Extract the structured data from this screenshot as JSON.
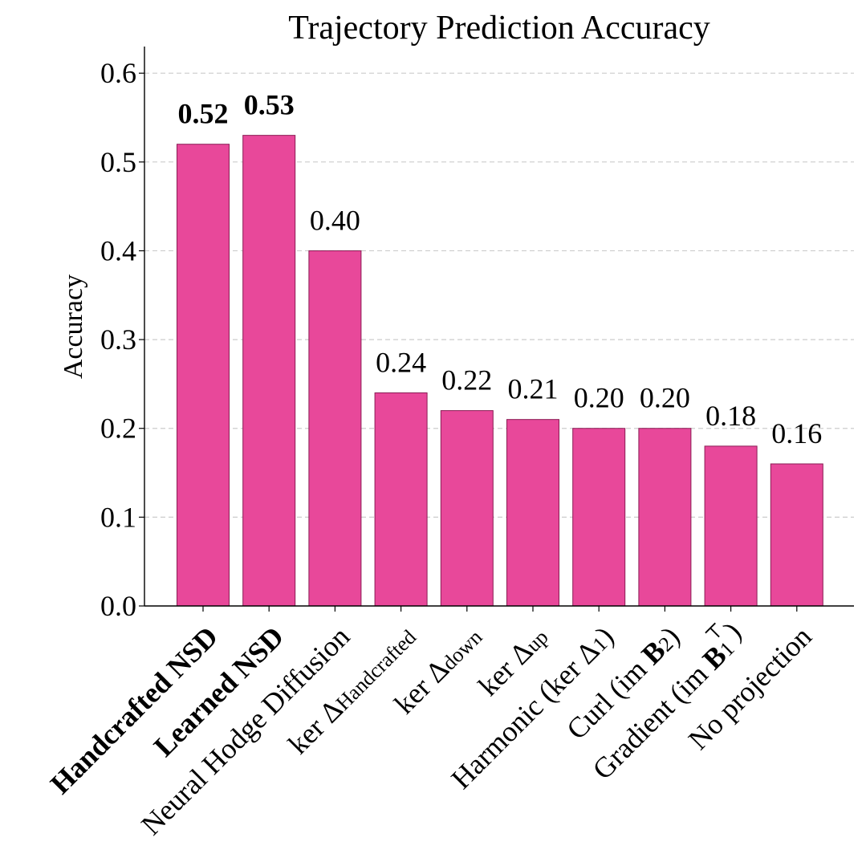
{
  "chart_data": {
    "type": "bar",
    "title": "Trajectory Prediction Accuracy",
    "xlabel": "",
    "ylabel": "Accuracy",
    "ylim": [
      0,
      0.63
    ],
    "yticks": [
      "0.0",
      "0.1",
      "0.2",
      "0.3",
      "0.4",
      "0.5",
      "0.6"
    ],
    "grid": "horizontal dashed",
    "bar_color": "#e8489a",
    "bar_edge_color": "#8a1c54",
    "categories": [
      {
        "base": "Handcrafted NSD",
        "bold": true
      },
      {
        "base": "Learned NSD",
        "bold": true
      },
      {
        "base": "Neural Hodge Diffusion"
      },
      {
        "base": "ker Δ",
        "sub": "Handcrafted"
      },
      {
        "base": "ker Δ",
        "sub": "down"
      },
      {
        "base": "ker Δ",
        "sub": "up"
      },
      {
        "base": "Harmonic (ker Δ",
        "sub": "1",
        "tail": ")"
      },
      {
        "base": "Curl (im ",
        "boldpart": "B",
        "sub": "2",
        "tail": ")"
      },
      {
        "base": "Gradient (im ",
        "boldpart": "B",
        "sub": "1",
        "sup": "⊤",
        "tail": ")"
      },
      {
        "base": "No projection"
      }
    ],
    "values": [
      0.52,
      0.53,
      0.4,
      0.24,
      0.22,
      0.21,
      0.2,
      0.2,
      0.18,
      0.16
    ],
    "value_labels": [
      "0.52",
      "0.53",
      "0.40",
      "0.24",
      "0.22",
      "0.21",
      "0.20",
      "0.20",
      "0.18",
      "0.16"
    ],
    "value_label_bold": [
      true,
      true,
      false,
      false,
      false,
      false,
      false,
      false,
      false,
      false
    ]
  }
}
